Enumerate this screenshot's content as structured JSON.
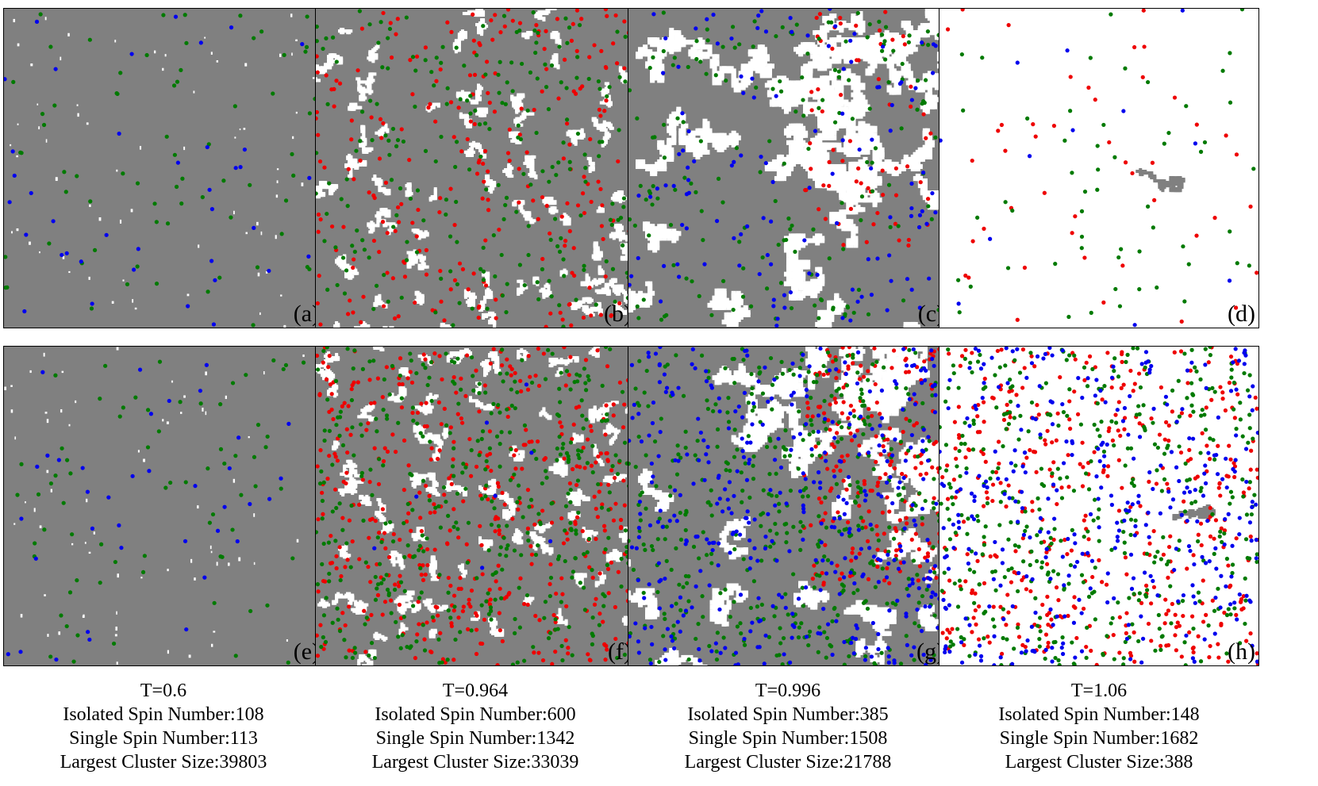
{
  "colors": {
    "spin_up": "#808080",
    "spin_down": "#ffffff",
    "isolated_blue": "#0000ee",
    "isolated_green": "#007a00",
    "single_red": "#ee0000"
  },
  "chart_data": [
    {
      "type": "scatter",
      "panel": "(a)",
      "T": "T=0.6",
      "cluster_fraction": 0.994,
      "background": "gray",
      "patches": "tiny",
      "dots": {
        "blue": 38,
        "green": 70,
        "red": 0
      }
    },
    {
      "type": "scatter",
      "panel": "(b)",
      "T": "T=0.964",
      "cluster_fraction": 0.83,
      "background": "gray",
      "patches": "medium",
      "dots": {
        "blue": 0,
        "green": 230,
        "red": 250
      }
    },
    {
      "type": "scatter",
      "panel": "(c)",
      "T": "T=0.996",
      "cluster_fraction": 0.545,
      "background": "gray",
      "patches": "large",
      "dots": {
        "blue": 130,
        "green": 180,
        "red": 70
      }
    },
    {
      "type": "scatter",
      "panel": "(d)",
      "T": "T=1.06",
      "cluster_fraction": 0.01,
      "background": "white",
      "patches": "one-blob",
      "dots": {
        "blue": 12,
        "green": 55,
        "red": 45
      }
    },
    {
      "type": "scatter",
      "panel": "(e)",
      "T": "T=0.6",
      "cluster_fraction": 0.994,
      "background": "gray",
      "patches": "tiny",
      "dots": {
        "blue": 38,
        "green": 72,
        "red": 0
      }
    },
    {
      "type": "scatter",
      "panel": "(f)",
      "T": "T=0.964",
      "cluster_fraction": 0.83,
      "background": "gray",
      "patches": "medium",
      "dots": {
        "blue": 8,
        "green": 420,
        "red": 470
      }
    },
    {
      "type": "scatter",
      "panel": "(g)",
      "T": "T=0.996",
      "cluster_fraction": 0.545,
      "background": "gray",
      "patches": "large",
      "dots": {
        "blue": 420,
        "green": 450,
        "red": 230
      }
    },
    {
      "type": "scatter",
      "panel": "(h)",
      "T": "T=1.06",
      "cluster_fraction": 0.01,
      "background": "white",
      "patches": "one-blob",
      "dots": {
        "blue": 340,
        "green": 420,
        "red": 430
      }
    }
  ],
  "captions": [
    {
      "temperature": "T=0.6",
      "isolated": "Isolated Spin Number:108",
      "single": "Single Spin Number:113",
      "cluster": "Largest Cluster Size:39803"
    },
    {
      "temperature": "T=0.964",
      "isolated": "Isolated Spin Number:600",
      "single": "Single Spin Number:1342",
      "cluster": "Largest Cluster Size:33039"
    },
    {
      "temperature": "T=0.996",
      "isolated": "Isolated Spin Number:385",
      "single": "Single Spin Number:1508",
      "cluster": "Largest Cluster Size:21788"
    },
    {
      "temperature": "T=1.06",
      "isolated": "Isolated Spin Number:148",
      "single": "Single Spin Number:1682",
      "cluster": "Largest Cluster Size:388"
    }
  ]
}
